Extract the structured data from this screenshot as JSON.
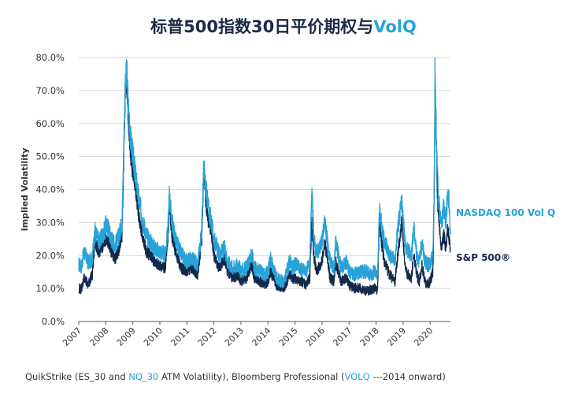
{
  "title": {
    "main": "标普500指数30日平价期权与",
    "highlight": "VolQ"
  },
  "source": {
    "part1": "QuikStrike (ES_30 and ",
    "part2": "NQ_30",
    "part3": " ATM Volatility), Bloomberg Professional (",
    "part4": "VOLQ",
    "part5": " ---2014 onward)"
  },
  "colors": {
    "nasdaq": "#27a3d8",
    "sp500": "#13294b",
    "axis": "#333333",
    "grid": "#d9d9d9"
  },
  "chart_data": {
    "type": "line",
    "title": "标普500指数30日平价期权与VolQ",
    "ylabel": "Implied Volatility",
    "xlabel": "",
    "ylim": [
      0,
      80
    ],
    "yticks": [
      "0.0%",
      "10.0%",
      "20.0%",
      "30.0%",
      "40.0%",
      "50.0%",
      "60.0%",
      "70.0%",
      "80.0%"
    ],
    "xlim": [
      2007.0,
      2020.75
    ],
    "xticks": [
      "2007",
      "2008",
      "2009",
      "2010",
      "2011",
      "2012",
      "2013",
      "2014",
      "2015",
      "2016",
      "2017",
      "2018",
      "2019",
      "2020"
    ],
    "grid": "horizontal",
    "legend": "right",
    "series": [
      {
        "name": "NASDAQ 100  Vol Q",
        "x": [
          2007.0,
          2007.1,
          2007.2,
          2007.35,
          2007.5,
          2007.6,
          2007.75,
          2007.9,
          2008.0,
          2008.1,
          2008.2,
          2008.35,
          2008.5,
          2008.6,
          2008.65,
          2008.72,
          2008.78,
          2008.85,
          2008.92,
          2009.0,
          2009.1,
          2009.2,
          2009.35,
          2009.5,
          2009.65,
          2009.8,
          2010.0,
          2010.2,
          2010.3,
          2010.35,
          2010.45,
          2010.6,
          2010.8,
          2011.0,
          2011.2,
          2011.4,
          2011.55,
          2011.62,
          2011.7,
          2011.8,
          2011.9,
          2012.0,
          2012.2,
          2012.4,
          2012.5,
          2012.7,
          2012.9,
          2013.0,
          2013.2,
          2013.4,
          2013.5,
          2013.7,
          2013.9,
          2014.0,
          2014.1,
          2014.3,
          2014.5,
          2014.6,
          2014.8,
          2014.9,
          2015.0,
          2015.2,
          2015.4,
          2015.55,
          2015.62,
          2015.7,
          2015.8,
          2016.0,
          2016.1,
          2016.3,
          2016.45,
          2016.5,
          2016.7,
          2016.9,
          2017.0,
          2017.2,
          2017.4,
          2017.6,
          2017.8,
          2017.95,
          2018.05,
          2018.12,
          2018.2,
          2018.3,
          2018.5,
          2018.7,
          2018.8,
          2018.95,
          2019.0,
          2019.1,
          2019.3,
          2019.4,
          2019.5,
          2019.6,
          2019.7,
          2019.8,
          2019.9,
          2020.0,
          2020.1,
          2020.15,
          2020.18,
          2020.22,
          2020.26,
          2020.3,
          2020.35,
          2020.42,
          2020.5,
          2020.58,
          2020.65,
          2020.7,
          2020.75
        ],
        "values": [
          17.0,
          16.5,
          21.0,
          17.5,
          19.0,
          27.0,
          24.0,
          26.0,
          29.0,
          28.0,
          25.0,
          23.0,
          26.0,
          30.0,
          47.0,
          72.0,
          74.0,
          62.0,
          55.0,
          50.0,
          44.0,
          38.0,
          31.0,
          26.0,
          24.0,
          22.0,
          21.0,
          20.0,
          28.0,
          38.0,
          30.0,
          24.0,
          20.0,
          18.0,
          19.0,
          17.0,
          28.0,
          46.0,
          40.0,
          34.0,
          30.0,
          25.0,
          20.0,
          22.0,
          18.0,
          16.0,
          17.0,
          15.0,
          16.0,
          20.0,
          16.0,
          15.0,
          14.0,
          15.0,
          19.0,
          13.0,
          12.0,
          12.0,
          18.0,
          16.0,
          17.0,
          16.0,
          15.0,
          17.0,
          39.0,
          25.0,
          20.0,
          24.0,
          30.0,
          18.0,
          16.0,
          24.0,
          16.0,
          18.0,
          15.0,
          14.0,
          15.0,
          15.0,
          14.0,
          15.0,
          13.0,
          33.0,
          29.0,
          24.0,
          20.0,
          18.0,
          28.0,
          36.0,
          30.0,
          22.0,
          20.0,
          28.0,
          20.0,
          18.0,
          24.0,
          18.0,
          17.0,
          17.0,
          20.0,
          40.0,
          76.0,
          60.0,
          45.0,
          38.0,
          34.0,
          28.0,
          35.0,
          30.0,
          39.0,
          36.0,
          27.0
        ]
      },
      {
        "name": "S&P 500®",
        "x": [
          2007.0,
          2007.1,
          2007.2,
          2007.35,
          2007.5,
          2007.6,
          2007.75,
          2007.9,
          2008.0,
          2008.1,
          2008.2,
          2008.35,
          2008.5,
          2008.6,
          2008.65,
          2008.72,
          2008.78,
          2008.85,
          2008.92,
          2009.0,
          2009.1,
          2009.2,
          2009.35,
          2009.5,
          2009.65,
          2009.8,
          2010.0,
          2010.2,
          2010.3,
          2010.35,
          2010.45,
          2010.6,
          2010.8,
          2011.0,
          2011.2,
          2011.4,
          2011.55,
          2011.62,
          2011.7,
          2011.8,
          2011.9,
          2012.0,
          2012.2,
          2012.4,
          2012.5,
          2012.7,
          2012.9,
          2013.0,
          2013.2,
          2013.4,
          2013.5,
          2013.7,
          2013.9,
          2014.0,
          2014.1,
          2014.3,
          2014.5,
          2014.6,
          2014.8,
          2014.9,
          2015.0,
          2015.2,
          2015.4,
          2015.55,
          2015.62,
          2015.7,
          2015.8,
          2016.0,
          2016.1,
          2016.3,
          2016.45,
          2016.5,
          2016.7,
          2016.9,
          2017.0,
          2017.2,
          2017.4,
          2017.6,
          2017.8,
          2017.95,
          2018.05,
          2018.12,
          2018.2,
          2018.3,
          2018.5,
          2018.7,
          2018.8,
          2018.95,
          2019.0,
          2019.1,
          2019.3,
          2019.4,
          2019.5,
          2019.6,
          2019.7,
          2019.8,
          2019.9,
          2020.0,
          2020.1,
          2020.15,
          2020.18,
          2020.22,
          2020.26,
          2020.3,
          2020.35,
          2020.42,
          2020.5,
          2020.58,
          2020.65,
          2020.7,
          2020.75
        ],
        "values": [
          10.0,
          9.5,
          13.0,
          11.0,
          14.0,
          24.0,
          21.0,
          23.0,
          25.0,
          24.0,
          21.0,
          19.0,
          22.0,
          26.0,
          42.0,
          70.0,
          72.0,
          58.0,
          50.0,
          45.0,
          40.0,
          33.0,
          26.0,
          21.0,
          20.0,
          18.0,
          17.0,
          16.0,
          25.0,
          35.0,
          26.0,
          20.0,
          16.0,
          15.0,
          16.0,
          14.0,
          25.0,
          45.0,
          36.0,
          30.0,
          27.0,
          20.0,
          16.0,
          19.0,
          15.0,
          13.0,
          14.0,
          12.0,
          13.0,
          17.0,
          13.0,
          12.0,
          11.0,
          12.0,
          15.0,
          11.0,
          10.0,
          10.0,
          14.0,
          13.0,
          13.0,
          12.0,
          11.0,
          13.0,
          30.0,
          19.0,
          15.0,
          18.0,
          24.0,
          13.0,
          12.0,
          18.0,
          12.0,
          13.0,
          11.0,
          10.0,
          10.0,
          9.0,
          9.5,
          10.0,
          9.0,
          30.0,
          24.0,
          18.0,
          14.0,
          12.0,
          20.0,
          30.0,
          24.0,
          15.0,
          13.0,
          20.0,
          14.0,
          12.0,
          17.0,
          12.0,
          11.0,
          12.0,
          15.0,
          38.0,
          75.0,
          58.0,
          40.0,
          32.0,
          28.0,
          22.0,
          26.0,
          22.0,
          28.0,
          25.0,
          22.0
        ]
      }
    ]
  }
}
